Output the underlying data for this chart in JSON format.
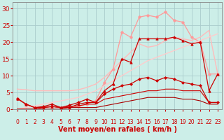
{
  "background_color": "#cceee8",
  "grid_color": "#aacccc",
  "xlabel": "Vent moyen/en rafales ( km/h )",
  "xlabel_color": "#cc0000",
  "xlabel_fontsize": 7,
  "tick_color": "#cc0000",
  "xtick_labels": [
    "0",
    "1",
    "2",
    "3",
    "4",
    "5",
    "6",
    "7",
    "8",
    "9",
    "10",
    "11",
    "12",
    "13",
    "14",
    "15",
    "16",
    "17",
    "18",
    "19",
    "20",
    "21",
    "22",
    "23"
  ],
  "ylim": [
    0,
    32
  ],
  "xlim": [
    -0.5,
    23.5
  ],
  "ytick_vals": [
    0,
    5,
    10,
    15,
    20,
    25,
    30
  ],
  "series": [
    {
      "x": [
        0,
        1,
        2,
        3,
        4,
        5,
        6,
        7,
        8,
        9,
        10,
        11,
        12,
        13,
        14,
        15,
        16,
        17,
        18,
        19,
        20,
        21,
        22,
        23
      ],
      "y": [
        6.0,
        5.8,
        5.5,
        5.5,
        5.5,
        5.5,
        5.5,
        5.8,
        6.5,
        7.5,
        9.5,
        12.0,
        14.5,
        17.0,
        19.5,
        18.5,
        19.0,
        20.5,
        21.5,
        21.0,
        20.5,
        21.5,
        23.5,
        10.5
      ],
      "color": "#ffbbbb",
      "marker": null,
      "linewidth": 1.0,
      "linestyle": "-"
    },
    {
      "x": [
        0,
        1,
        2,
        3,
        4,
        5,
        6,
        7,
        8,
        9,
        10,
        11,
        12,
        13,
        14,
        15,
        16,
        17,
        18,
        19,
        20,
        21,
        22,
        23
      ],
      "y": [
        3.2,
        1.5,
        0.5,
        0.5,
        0.8,
        0.5,
        0.5,
        0.8,
        1.5,
        2.5,
        8.0,
        12.0,
        23.0,
        21.5,
        27.5,
        28.0,
        27.5,
        29.0,
        26.5,
        26.0,
        21.5,
        20.0,
        10.5,
        10.5
      ],
      "color": "#ff9999",
      "marker": "o",
      "markersize": 2.5,
      "linewidth": 0.9,
      "linestyle": "-"
    },
    {
      "x": [
        0,
        1,
        2,
        3,
        4,
        5,
        6,
        7,
        8,
        9,
        10,
        11,
        12,
        13,
        14,
        15,
        16,
        17,
        18,
        19,
        20,
        21,
        22,
        23
      ],
      "y": [
        0.0,
        0.5,
        1.0,
        1.5,
        2.0,
        2.5,
        3.0,
        3.5,
        4.5,
        5.5,
        7.0,
        8.5,
        10.0,
        11.5,
        13.0,
        14.5,
        15.5,
        16.5,
        17.5,
        18.5,
        19.5,
        20.5,
        21.5,
        22.5
      ],
      "color": "#ffcccc",
      "marker": null,
      "linewidth": 1.0,
      "linestyle": "-"
    },
    {
      "x": [
        0,
        1,
        2,
        3,
        4,
        5,
        6,
        7,
        8,
        9,
        10,
        11,
        12,
        13,
        14,
        15,
        16,
        17,
        18,
        19,
        20,
        21,
        22,
        23
      ],
      "y": [
        3.2,
        1.5,
        0.5,
        0.5,
        0.8,
        0.5,
        0.5,
        1.5,
        2.0,
        2.0,
        5.5,
        7.5,
        15.0,
        14.0,
        21.0,
        21.0,
        21.0,
        21.0,
        21.5,
        20.5,
        19.5,
        20.0,
        5.5,
        10.5
      ],
      "color": "#cc0000",
      "marker": "^",
      "markersize": 2.5,
      "linewidth": 0.9,
      "linestyle": "-"
    },
    {
      "x": [
        0,
        1,
        2,
        3,
        4,
        5,
        6,
        7,
        8,
        9,
        10,
        11,
        12,
        13,
        14,
        15,
        16,
        17,
        18,
        19,
        20,
        21,
        22,
        23
      ],
      "y": [
        3.2,
        1.5,
        0.5,
        0.8,
        1.5,
        0.5,
        1.2,
        2.0,
        3.0,
        2.0,
        4.5,
        6.0,
        7.0,
        7.5,
        9.0,
        9.5,
        8.5,
        9.5,
        9.0,
        8.0,
        7.5,
        7.0,
        2.0,
        2.0
      ],
      "color": "#cc0000",
      "marker": "D",
      "markersize": 2.0,
      "linewidth": 0.9,
      "linestyle": "-"
    },
    {
      "x": [
        0,
        1,
        2,
        3,
        4,
        5,
        6,
        7,
        8,
        9,
        10,
        11,
        12,
        13,
        14,
        15,
        16,
        17,
        18,
        19,
        20,
        21,
        22,
        23
      ],
      "y": [
        0.0,
        0.0,
        0.0,
        0.5,
        0.8,
        0.5,
        0.8,
        1.0,
        1.5,
        1.5,
        3.0,
        3.5,
        4.0,
        4.5,
        5.0,
        5.5,
        5.5,
        6.0,
        6.0,
        5.5,
        5.5,
        5.5,
        2.0,
        2.0
      ],
      "color": "#cc0000",
      "marker": null,
      "linewidth": 0.8,
      "linestyle": "-"
    },
    {
      "x": [
        0,
        1,
        2,
        3,
        4,
        5,
        6,
        7,
        8,
        9,
        10,
        11,
        12,
        13,
        14,
        15,
        16,
        17,
        18,
        19,
        20,
        21,
        22,
        23
      ],
      "y": [
        0.0,
        0.0,
        0.0,
        0.0,
        0.0,
        0.0,
        0.5,
        0.5,
        0.5,
        0.5,
        1.0,
        1.5,
        2.0,
        2.5,
        3.0,
        3.5,
        3.5,
        3.5,
        3.5,
        3.0,
        3.0,
        2.5,
        1.5,
        1.5
      ],
      "color": "#aa0000",
      "marker": null,
      "linewidth": 0.8,
      "linestyle": "-"
    }
  ]
}
